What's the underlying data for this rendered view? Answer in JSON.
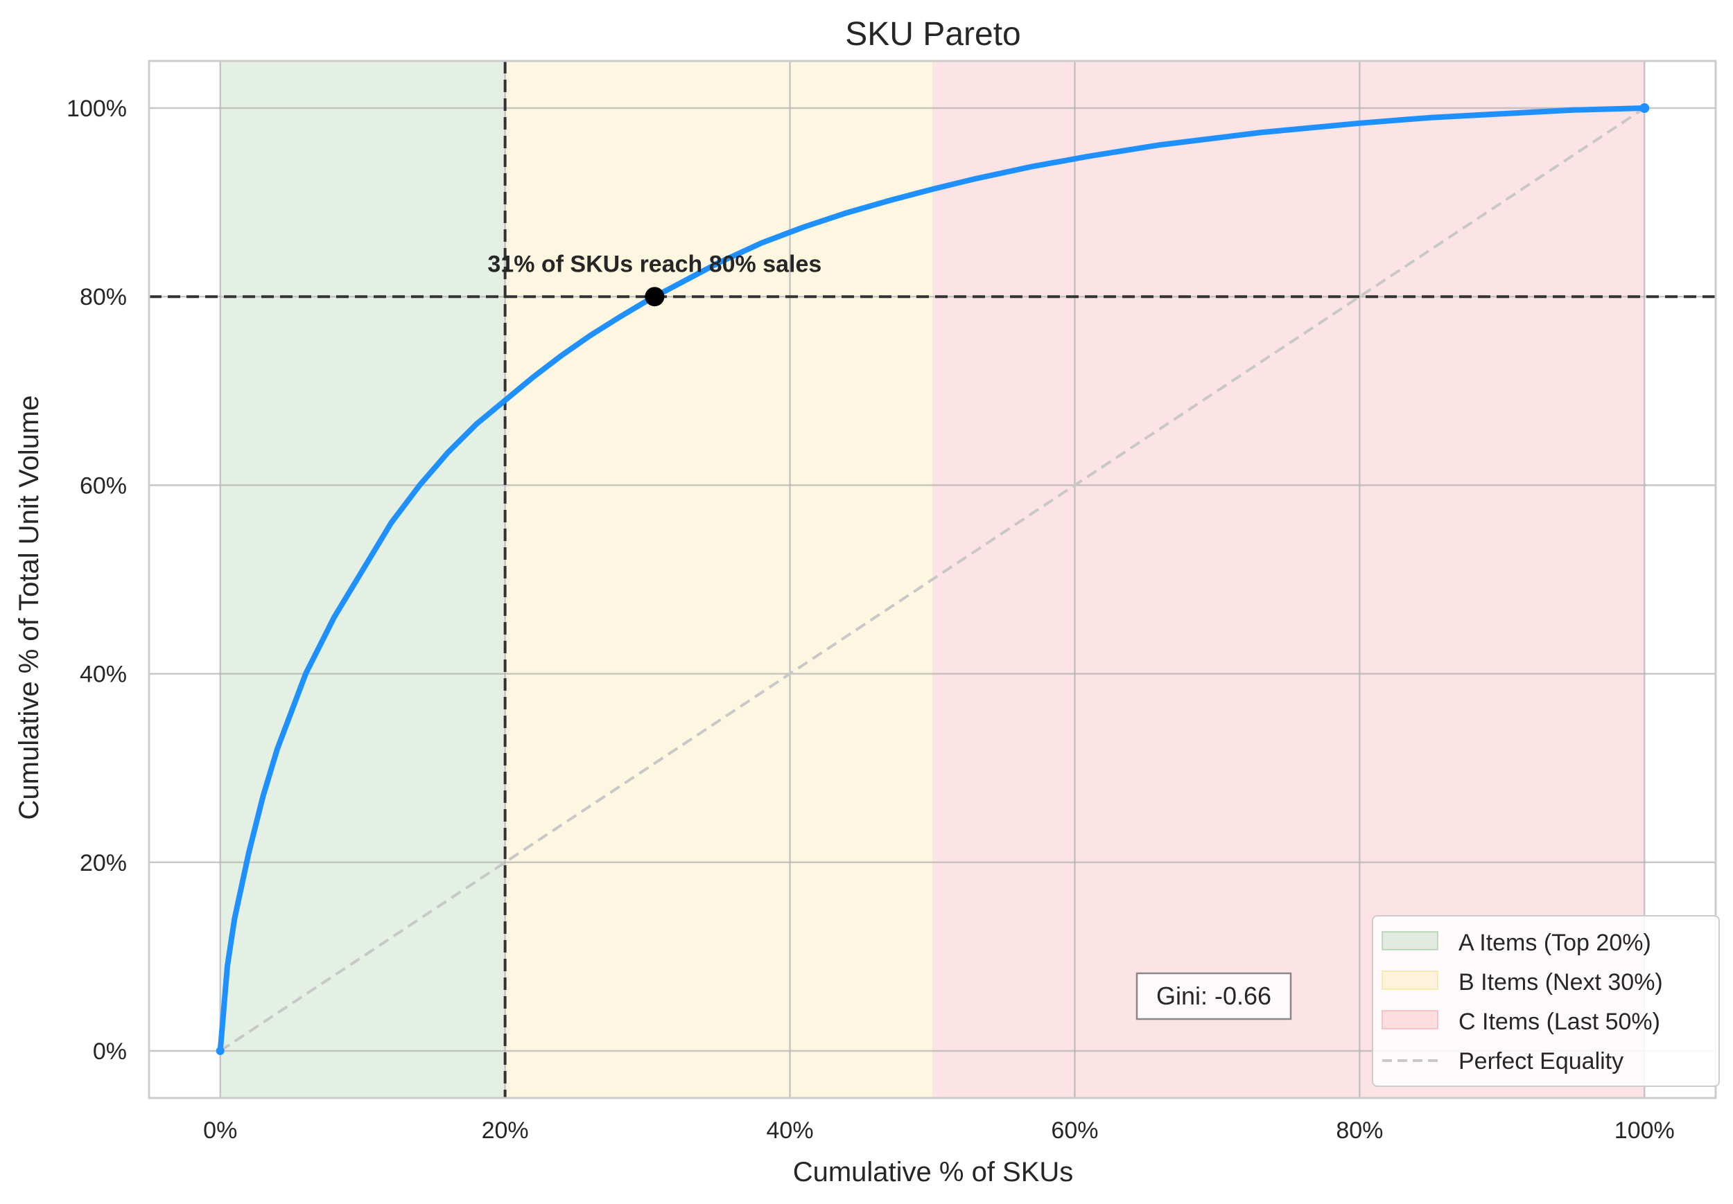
{
  "chart_data": {
    "type": "line",
    "title": "SKU Pareto",
    "xlabel": "Cumulative % of SKUs",
    "ylabel": "Cumulative % of Total Unit Volume",
    "xlim": [
      -5,
      105
    ],
    "ylim": [
      -5,
      105
    ],
    "xticks": [
      0,
      20,
      40,
      60,
      80,
      100
    ],
    "yticks": [
      0,
      20,
      40,
      60,
      80,
      100
    ],
    "xtick_labels": [
      "0%",
      "20%",
      "40%",
      "60%",
      "80%",
      "100%"
    ],
    "ytick_labels": [
      "0%",
      "20%",
      "40%",
      "60%",
      "80%",
      "100%"
    ],
    "grid": true,
    "legend_position": "bottom-right",
    "regions": [
      {
        "label": "A Items (Top 20%)",
        "x_start": 0,
        "x_end": 20,
        "color": "#4f9a4f"
      },
      {
        "label": "B Items (Next 30%)",
        "x_start": 20,
        "x_end": 50,
        "color": "#f5d76e"
      },
      {
        "label": "C Items (Last 50%)",
        "x_start": 50,
        "x_end": 100,
        "color": "#f7a8b0"
      }
    ],
    "series": [
      {
        "color": "#1e90ff",
        "x": [
          0,
          0.5,
          1,
          2,
          3,
          4,
          5,
          6,
          8,
          10,
          12,
          14,
          16,
          18,
          20,
          22,
          24,
          26,
          28,
          30,
          32,
          35,
          38,
          41,
          44,
          47,
          50,
          53,
          57,
          61,
          66,
          73,
          80,
          85,
          90,
          95,
          100
        ],
        "y": [
          0,
          9,
          14,
          21,
          27,
          32,
          36,
          40,
          46,
          51,
          56,
          60,
          63.5,
          66.5,
          69,
          71.5,
          73.8,
          75.9,
          77.8,
          79.6,
          81.2,
          83.6,
          85.7,
          87.4,
          88.9,
          90.2,
          91.4,
          92.5,
          93.8,
          94.9,
          96.1,
          97.4,
          98.4,
          99.0,
          99.4,
          99.8,
          100
        ]
      },
      {
        "name": "Perfect Equality",
        "color": "#c8c8c8",
        "dashed": true,
        "x": [
          0,
          100
        ],
        "y": [
          0,
          100
        ]
      }
    ],
    "reference_lines": [
      {
        "orientation": "horizontal",
        "value": 80,
        "style": "dashed",
        "color": "#333333"
      },
      {
        "orientation": "vertical",
        "value": 20,
        "style": "dashed",
        "color": "#333333"
      }
    ],
    "marker": {
      "x": 30.5,
      "y": 80,
      "color": "#000000"
    },
    "annotations": [
      {
        "text": "31% of SKUs reach 80% sales",
        "x": 30.5,
        "y": 83.5
      }
    ],
    "gini_label": "Gini: -0.66"
  }
}
